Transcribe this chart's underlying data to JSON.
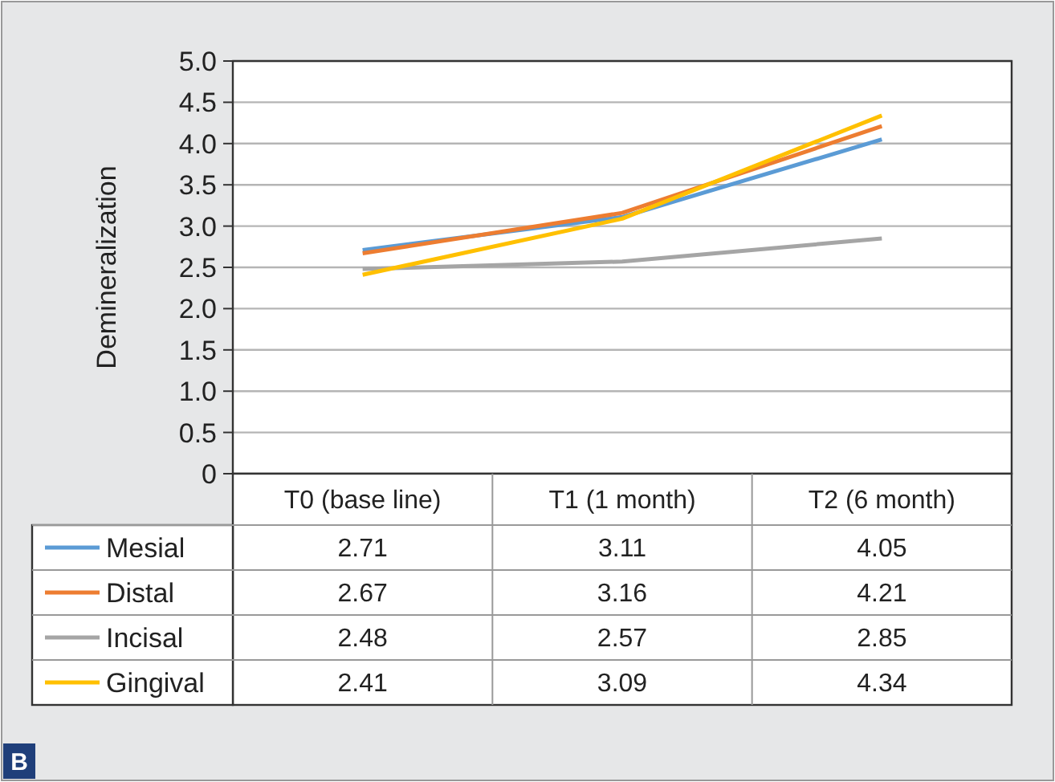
{
  "chart_data": {
    "type": "line",
    "ylabel": "Demineralization",
    "categories": [
      "T0 (base line)",
      "T1 (1 month)",
      "T2 (6 month)"
    ],
    "series": [
      {
        "name": "Mesial",
        "color": "#5b9bd5",
        "values": [
          2.71,
          3.11,
          4.05
        ]
      },
      {
        "name": "Distal",
        "color": "#ed7d31",
        "values": [
          2.67,
          3.16,
          4.21
        ]
      },
      {
        "name": "Incisal",
        "color": "#a5a5a5",
        "values": [
          2.48,
          2.57,
          2.85
        ]
      },
      {
        "name": "Gingival",
        "color": "#ffc000",
        "values": [
          2.41,
          3.09,
          4.34
        ]
      }
    ],
    "ylim": [
      0,
      5
    ],
    "yticks": [
      {
        "value": 0,
        "label": "0"
      },
      0.5,
      {
        "value": 1,
        "label": "1.0"
      },
      1.5,
      {
        "value": 2,
        "label": "2.0"
      },
      2.5,
      {
        "value": 3,
        "label": "3.0"
      },
      3.5,
      {
        "value": 4,
        "label": "4.0"
      },
      4.5,
      {
        "value": 5,
        "label": "5.0"
      }
    ],
    "grid": "y",
    "data_labels": true,
    "legend": "bottom",
    "line_style": "solid",
    "annotations": [
      "B"
    ]
  }
}
